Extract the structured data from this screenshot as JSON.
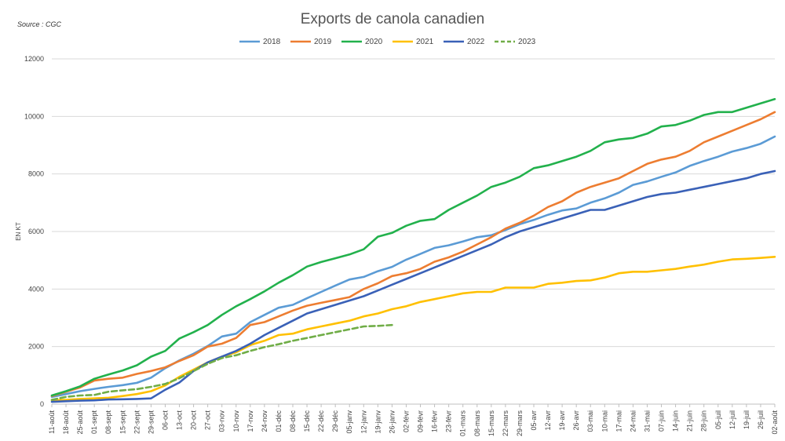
{
  "source": "Source : CGC",
  "chart_data": {
    "type": "line",
    "title": "Exports de canola canadien",
    "xlabel": "",
    "ylabel": "EN KT",
    "ylim": [
      0,
      12000
    ],
    "yticks": [
      0,
      2000,
      4000,
      6000,
      8000,
      10000,
      12000
    ],
    "grid": true,
    "legend_position": "top",
    "categories": [
      "11-août",
      "18-août",
      "25-août",
      "01-sept",
      "08-sept",
      "15-sept",
      "22-sept",
      "29-sept",
      "06-oct",
      "13-oct",
      "20-oct",
      "27-oct",
      "03-nov",
      "10-nov",
      "17-nov",
      "24-nov",
      "01-déc",
      "08-déc",
      "15-déc",
      "22-déc",
      "29-déc",
      "05-janv",
      "12-janv",
      "19-janv",
      "26-janv",
      "02-févr",
      "09-févr",
      "16-févr",
      "23-févr",
      "01-mars",
      "08-mars",
      "15-mars",
      "22-mars",
      "29-mars",
      "05-avr",
      "12-avr",
      "19-avr",
      "26-avr",
      "03-mai",
      "10-mai",
      "17-mai",
      "24-mai",
      "31-mai",
      "07-juin",
      "14-juin",
      "21-juin",
      "28-juin",
      "05-juil",
      "12-juil",
      "19-juil",
      "26-juil",
      "02-août"
    ],
    "series": [
      {
        "name": "2018",
        "color": "#5b9bd5",
        "dash": false,
        "values": [
          250,
          350,
          450,
          530,
          600,
          660,
          740,
          920,
          1250,
          1520,
          1750,
          2020,
          2350,
          2450,
          2850,
          3100,
          3350,
          3450,
          3680,
          3900,
          4120,
          4330,
          4420,
          4620,
          4770,
          5020,
          5220,
          5430,
          5520,
          5650,
          5800,
          5870,
          6050,
          6250,
          6400,
          6580,
          6730,
          6800,
          7000,
          7150,
          7350,
          7620,
          7740,
          7900,
          8050,
          8280,
          8450,
          8600,
          8780,
          8900,
          9050,
          9300
        ]
      },
      {
        "name": "2019",
        "color": "#ed7d31",
        "dash": false,
        "values": [
          280,
          430,
          580,
          820,
          880,
          920,
          1050,
          1150,
          1280,
          1500,
          1700,
          2000,
          2100,
          2300,
          2750,
          2850,
          3050,
          3250,
          3420,
          3520,
          3620,
          3720,
          4000,
          4200,
          4450,
          4550,
          4700,
          4950,
          5100,
          5300,
          5550,
          5800,
          6100,
          6300,
          6550,
          6850,
          7050,
          7350,
          7550,
          7700,
          7850,
          8100,
          8350,
          8500,
          8600,
          8800,
          9100,
          9300,
          9500,
          9700,
          9900,
          10150
        ]
      },
      {
        "name": "2020",
        "color": "#22b14c",
        "dash": false,
        "values": [
          300,
          450,
          620,
          880,
          1030,
          1170,
          1350,
          1650,
          1850,
          2280,
          2500,
          2750,
          3100,
          3400,
          3650,
          3920,
          4220,
          4480,
          4780,
          4940,
          5070,
          5200,
          5380,
          5820,
          5950,
          6200,
          6370,
          6430,
          6750,
          7000,
          7250,
          7550,
          7700,
          7900,
          8200,
          8300,
          8450,
          8600,
          8800,
          9100,
          9200,
          9250,
          9400,
          9650,
          9700,
          9850,
          10050,
          10150,
          10150,
          10300,
          10450,
          10600
        ]
      },
      {
        "name": "2021",
        "color": "#ffc000",
        "dash": false,
        "values": [
          130,
          150,
          180,
          200,
          220,
          280,
          350,
          450,
          650,
          950,
          1200,
          1450,
          1650,
          1800,
          2050,
          2200,
          2400,
          2450,
          2600,
          2700,
          2800,
          2900,
          3050,
          3150,
          3300,
          3400,
          3550,
          3650,
          3750,
          3850,
          3900,
          3900,
          4050,
          4050,
          4050,
          4180,
          4220,
          4280,
          4300,
          4400,
          4550,
          4600,
          4600,
          4650,
          4700,
          4780,
          4850,
          4950,
          5030,
          5050,
          5080,
          5120
        ]
      },
      {
        "name": "2022",
        "color": "#3a61b7",
        "dash": false,
        "values": [
          80,
          100,
          120,
          130,
          160,
          170,
          180,
          200,
          500,
          750,
          1150,
          1450,
          1650,
          1850,
          2100,
          2400,
          2650,
          2900,
          3150,
          3300,
          3450,
          3600,
          3750,
          3950,
          4150,
          4350,
          4550,
          4750,
          4950,
          5150,
          5350,
          5550,
          5800,
          6000,
          6150,
          6300,
          6450,
          6600,
          6750,
          6750,
          6900,
          7050,
          7200,
          7300,
          7350,
          7450,
          7550,
          7650,
          7750,
          7850,
          8000,
          8100
        ]
      },
      {
        "name": "2023",
        "color": "#70ad47",
        "dash": true,
        "values": [
          150,
          250,
          300,
          320,
          430,
          480,
          520,
          600,
          700,
          900,
          1150,
          1400,
          1600,
          1700,
          1850,
          1980,
          2080,
          2200,
          2300,
          2400,
          2500,
          2600,
          2700,
          2720,
          2750,
          null,
          null,
          null,
          null,
          null,
          null,
          null,
          null,
          null,
          null,
          null,
          null,
          null,
          null,
          null,
          null,
          null,
          null,
          null,
          null,
          null,
          null,
          null,
          null,
          null,
          null,
          null
        ]
      }
    ]
  }
}
